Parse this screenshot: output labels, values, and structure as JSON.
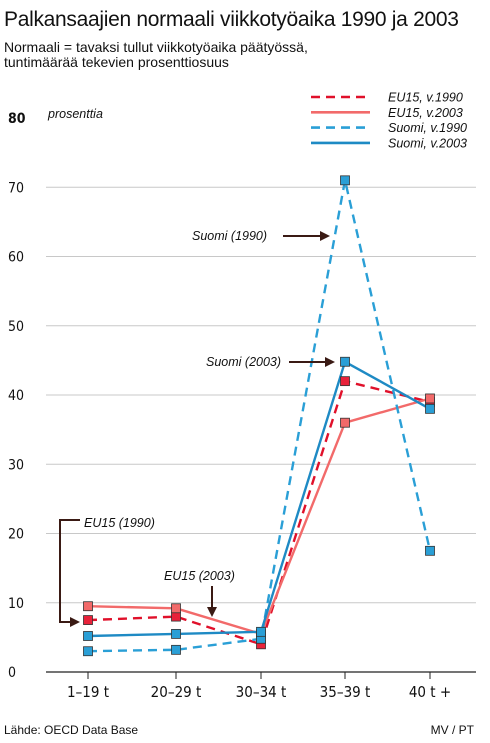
{
  "title": "Palkansaajien normaali viikkotyöaika 1990 ja 2003",
  "subtitle_lines": [
    "Normaali = tavaksi tullut viikkotyöaika päätyössä,",
    "tuntimäärää tekevien prosenttiosuus"
  ],
  "source": "Lähde: OECD Data Base",
  "credit": "MV / PT",
  "chart_data": {
    "type": "line",
    "ylabel": "prosenttia",
    "ylim": [
      0,
      80
    ],
    "yticks": [
      0,
      10,
      20,
      30,
      40,
      50,
      60,
      70,
      80
    ],
    "grid": true,
    "legend_position": "top-right",
    "categories": [
      "1–19 t",
      "20–29 t",
      "30–34 t",
      "35–39 t",
      "40 t +"
    ],
    "series": [
      {
        "name": "EU15,  v.1990",
        "color": "#e0102a",
        "marker": "#e8223a",
        "dashed": true,
        "values": [
          7.5,
          8,
          4,
          42,
          39
        ]
      },
      {
        "name": "EU15,  v.2003",
        "color": "#f26a6a",
        "marker": "#f26a6a",
        "dashed": false,
        "values": [
          9.5,
          9.2,
          5.5,
          36,
          39.5
        ]
      },
      {
        "name": "Suomi, v.1990",
        "color": "#2a9fd6",
        "marker": "#2a9fd6",
        "dashed": true,
        "values": [
          3,
          3.2,
          4.8,
          71,
          17.5
        ]
      },
      {
        "name": "Suomi, v.2003",
        "color": "#1e8ac4",
        "marker": "#2a9fd6",
        "dashed": false,
        "values": [
          5.2,
          5.5,
          5.8,
          44.8,
          38
        ]
      }
    ],
    "annotations": [
      {
        "text": "Suomi (1990)"
      },
      {
        "text": "Suomi (2003)"
      },
      {
        "text": "EU15 (1990)"
      },
      {
        "text": "EU15 (2003)"
      }
    ]
  }
}
